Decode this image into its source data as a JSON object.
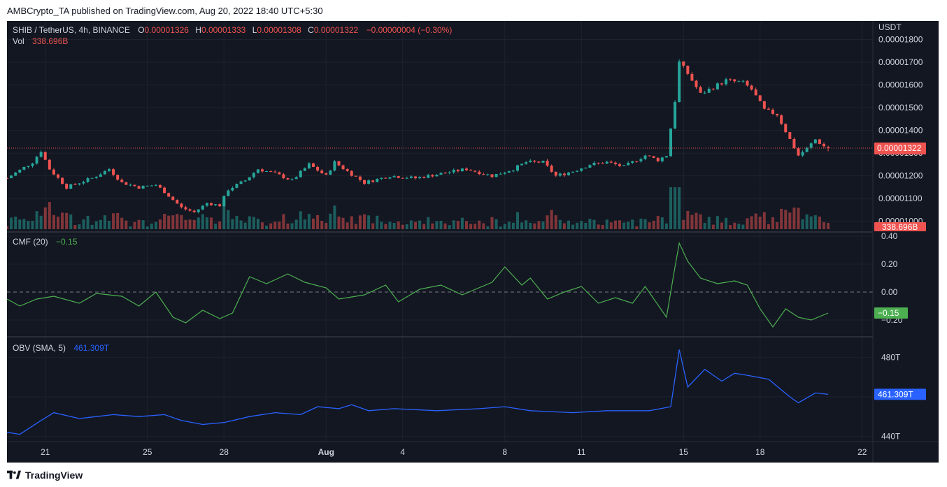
{
  "header": "AMBCrypto_TA published on TradingView.com, Aug 20, 2022 18:40 UTC+5:30",
  "footer": "TradingView",
  "legend": {
    "symbol": "SHIB / TetherUS, 4h, BINANCE",
    "o_label": "O",
    "o": "0.00001326",
    "h_label": "H",
    "h": "0.00001333",
    "l_label": "L",
    "l": "0.00001308",
    "c_label": "C",
    "c": "0.00001322",
    "change": "−0.00000004 (−0.30%)",
    "vol_label": "Vol",
    "vol": "338.696B"
  },
  "cmf_legend": {
    "label": "CMF (20)",
    "value": "−0.15"
  },
  "obv_legend": {
    "label": "OBV (SMA, 5)",
    "value": "461.309T"
  },
  "price_axis": {
    "currency": "USDT",
    "ticks": [
      "0.00001800",
      "0.00001700",
      "0.00001600",
      "0.00001500",
      "0.00001400",
      "0.00001300",
      "0.00001200",
      "0.00001100",
      "0.00001000"
    ],
    "current": "0.00001322",
    "vol_tag": "338.696B"
  },
  "cmf_axis": {
    "ticks": [
      "0.40",
      "0.20",
      "0.00",
      "−0.20"
    ],
    "current": "−0.15"
  },
  "obv_axis": {
    "ticks": [
      "480T",
      "440T"
    ],
    "current": "461.309T"
  },
  "time_axis": [
    "21",
    "25",
    "28",
    "Aug",
    "4",
    "8",
    "11",
    "15",
    "18",
    "22"
  ],
  "colors": {
    "bg": "#131722",
    "up": "#26a69a",
    "down": "#ef5350",
    "cmf": "#4caf50",
    "obv": "#2962ff",
    "text": "#b2b5be"
  },
  "chart_data": [
    {
      "type": "candlestick",
      "title": "SHIB / TetherUS, 4h, BINANCE",
      "x_range": [
        "2022-07-19T12:00",
        "2022-08-20T16:00"
      ],
      "ylim": [
        9.9e-06,
        1.82e-05
      ],
      "y_unit": "USDT",
      "close_anchors": [
        [
          "07-19 12:00",
          1.19e-05
        ],
        [
          "07-20 12:00",
          1.26e-05
        ],
        [
          "07-20 20:00",
          1.31e-05
        ],
        [
          "07-21 04:00",
          1.23e-05
        ],
        [
          "07-21 20:00",
          1.15e-05
        ],
        [
          "07-22 20:00",
          1.19e-05
        ],
        [
          "07-23 12:00",
          1.23e-05
        ],
        [
          "07-24 00:00",
          1.17e-05
        ],
        [
          "07-24 16:00",
          1.15e-05
        ],
        [
          "07-25 08:00",
          1.16e-05
        ],
        [
          "07-25 16:00",
          1.13e-05
        ],
        [
          "07-26 08:00",
          1.06e-05
        ],
        [
          "07-26 20:00",
          1.04e-05
        ],
        [
          "07-27 08:00",
          1.08e-05
        ],
        [
          "07-27 20:00",
          1.07e-05
        ],
        [
          "07-28 04:00",
          1.14e-05
        ],
        [
          "07-28 20:00",
          1.18e-05
        ],
        [
          "07-29 08:00",
          1.23e-05
        ],
        [
          "07-30 00:00",
          1.21e-05
        ],
        [
          "07-30 16:00",
          1.18e-05
        ],
        [
          "07-31 08:00",
          1.25e-05
        ],
        [
          "08-01 00:00",
          1.2e-05
        ],
        [
          "08-01 08:00",
          1.26e-05
        ],
        [
          "08-01 20:00",
          1.22e-05
        ],
        [
          "08-02 12:00",
          1.17e-05
        ],
        [
          "08-03 12:00",
          1.2e-05
        ],
        [
          "08-04 12:00",
          1.19e-05
        ],
        [
          "08-05 12:00",
          1.21e-05
        ],
        [
          "08-06 12:00",
          1.23e-05
        ],
        [
          "08-07 12:00",
          1.2e-05
        ],
        [
          "08-08 08:00",
          1.23e-05
        ],
        [
          "08-08 20:00",
          1.26e-05
        ],
        [
          "08-09 12:00",
          1.26e-05
        ],
        [
          "08-10 00:00",
          1.2e-05
        ],
        [
          "08-10 16:00",
          1.22e-05
        ],
        [
          "08-11 08:00",
          1.25e-05
        ],
        [
          "08-12 00:00",
          1.26e-05
        ],
        [
          "08-12 16:00",
          1.24e-05
        ],
        [
          "08-13 12:00",
          1.29e-05
        ],
        [
          "08-14 00:00",
          1.27e-05
        ],
        [
          "08-14 08:00",
          1.29e-05
        ],
        [
          "08-14 16:00",
          1.53e-05
        ],
        [
          "08-14 20:00",
          1.7e-05
        ],
        [
          "08-15 04:00",
          1.65e-05
        ],
        [
          "08-15 16:00",
          1.56e-05
        ],
        [
          "08-16 04:00",
          1.59e-05
        ],
        [
          "08-16 16:00",
          1.62e-05
        ],
        [
          "08-17 08:00",
          1.61e-05
        ],
        [
          "08-17 16:00",
          1.58e-05
        ],
        [
          "08-18 04:00",
          1.49e-05
        ],
        [
          "08-18 16:00",
          1.47e-05
        ],
        [
          "08-19 04:00",
          1.36e-05
        ],
        [
          "08-19 12:00",
          1.29e-05
        ],
        [
          "08-19 20:00",
          1.32e-05
        ],
        [
          "08-20 04:00",
          1.36e-05
        ],
        [
          "08-20 12:00",
          1.33e-05
        ],
        [
          "08-20 16:00",
          1.322e-05
        ]
      ],
      "last": {
        "o": 1.326e-05,
        "h": 1.333e-05,
        "l": 1.308e-05,
        "c": 1.322e-05
      },
      "volume_last": "338.696B"
    },
    {
      "type": "line",
      "title": "CMF (20)",
      "ylim": [
        -0.26,
        0.4
      ],
      "zero_line": true,
      "anchors": [
        [
          "07-19 12:00",
          -0.05
        ],
        [
          "07-20 00:00",
          -0.1
        ],
        [
          "07-20 16:00",
          -0.05
        ],
        [
          "07-21 08:00",
          -0.03
        ],
        [
          "07-22 08:00",
          -0.08
        ],
        [
          "07-23 00:00",
          -0.01
        ],
        [
          "07-24 00:00",
          -0.03
        ],
        [
          "07-24 16:00",
          -0.1
        ],
        [
          "07-25 08:00",
          0.0
        ],
        [
          "07-26 00:00",
          -0.18
        ],
        [
          "07-26 12:00",
          -0.22
        ],
        [
          "07-27 04:00",
          -0.13
        ],
        [
          "07-27 20:00",
          -0.19
        ],
        [
          "07-28 08:00",
          -0.15
        ],
        [
          "07-29 00:00",
          0.11
        ],
        [
          "07-29 16:00",
          0.06
        ],
        [
          "07-30 12:00",
          0.13
        ],
        [
          "07-31 04:00",
          0.07
        ],
        [
          "08-01 00:00",
          0.03
        ],
        [
          "08-01 12:00",
          -0.05
        ],
        [
          "08-02 12:00",
          -0.02
        ],
        [
          "08-03 08:00",
          0.05
        ],
        [
          "08-03 20:00",
          -0.07
        ],
        [
          "08-04 16:00",
          0.02
        ],
        [
          "08-05 12:00",
          0.05
        ],
        [
          "08-06 08:00",
          -0.02
        ],
        [
          "08-07 12:00",
          0.07
        ],
        [
          "08-08 00:00",
          0.18
        ],
        [
          "08-08 16:00",
          0.05
        ],
        [
          "08-09 00:00",
          0.1
        ],
        [
          "08-09 16:00",
          -0.05
        ],
        [
          "08-10 08:00",
          0.0
        ],
        [
          "08-11 00:00",
          0.04
        ],
        [
          "08-11 16:00",
          -0.08
        ],
        [
          "08-12 08:00",
          -0.04
        ],
        [
          "08-13 00:00",
          -0.08
        ],
        [
          "08-13 12:00",
          0.04
        ],
        [
          "08-14 08:00",
          -0.18
        ],
        [
          "08-14 16:00",
          0.18
        ],
        [
          "08-14 20:00",
          0.35
        ],
        [
          "08-15 04:00",
          0.22
        ],
        [
          "08-15 16:00",
          0.1
        ],
        [
          "08-16 08:00",
          0.06
        ],
        [
          "08-17 00:00",
          0.08
        ],
        [
          "08-17 12:00",
          0.05
        ],
        [
          "08-18 00:00",
          -0.12
        ],
        [
          "08-18 12:00",
          -0.25
        ],
        [
          "08-19 00:00",
          -0.12
        ],
        [
          "08-19 12:00",
          -0.18
        ],
        [
          "08-20 00:00",
          -0.2
        ],
        [
          "08-20 16:00",
          -0.15
        ]
      ],
      "last": -0.15
    },
    {
      "type": "line",
      "title": "OBV (SMA, 5)",
      "ylim": [
        438,
        487
      ],
      "y_unit": "T",
      "anchors": [
        [
          "07-19 12:00",
          442
        ],
        [
          "07-20 00:00",
          441
        ],
        [
          "07-20 20:00",
          448
        ],
        [
          "07-21 08:00",
          452
        ],
        [
          "07-22 08:00",
          449
        ],
        [
          "07-23 16:00",
          451
        ],
        [
          "07-24 16:00",
          450
        ],
        [
          "07-25 16:00",
          451
        ],
        [
          "07-26 08:00",
          448
        ],
        [
          "07-27 04:00",
          446
        ],
        [
          "07-28 00:00",
          447
        ],
        [
          "07-29 00:00",
          450
        ],
        [
          "07-30 00:00",
          452
        ],
        [
          "07-31 00:00",
          451
        ],
        [
          "07-31 16:00",
          455
        ],
        [
          "08-01 12:00",
          454
        ],
        [
          "08-02 00:00",
          456
        ],
        [
          "08-02 16:00",
          453
        ],
        [
          "08-03 16:00",
          454
        ],
        [
          "08-05 08:00",
          453
        ],
        [
          "08-07 00:00",
          454
        ],
        [
          "08-08 00:00",
          455
        ],
        [
          "08-09 00:00",
          453
        ],
        [
          "08-10 16:00",
          452
        ],
        [
          "08-12 00:00",
          453
        ],
        [
          "08-13 16:00",
          453
        ],
        [
          "08-14 12:00",
          455
        ],
        [
          "08-14 20:00",
          484
        ],
        [
          "08-15 04:00",
          465
        ],
        [
          "08-15 20:00",
          474
        ],
        [
          "08-16 12:00",
          468
        ],
        [
          "08-17 00:00",
          472
        ],
        [
          "08-17 12:00",
          471
        ],
        [
          "08-18 08:00",
          469
        ],
        [
          "08-19 04:00",
          460
        ],
        [
          "08-19 12:00",
          457
        ],
        [
          "08-20 04:00",
          462
        ],
        [
          "08-20 16:00",
          461.309
        ]
      ],
      "last": 461.309
    }
  ]
}
